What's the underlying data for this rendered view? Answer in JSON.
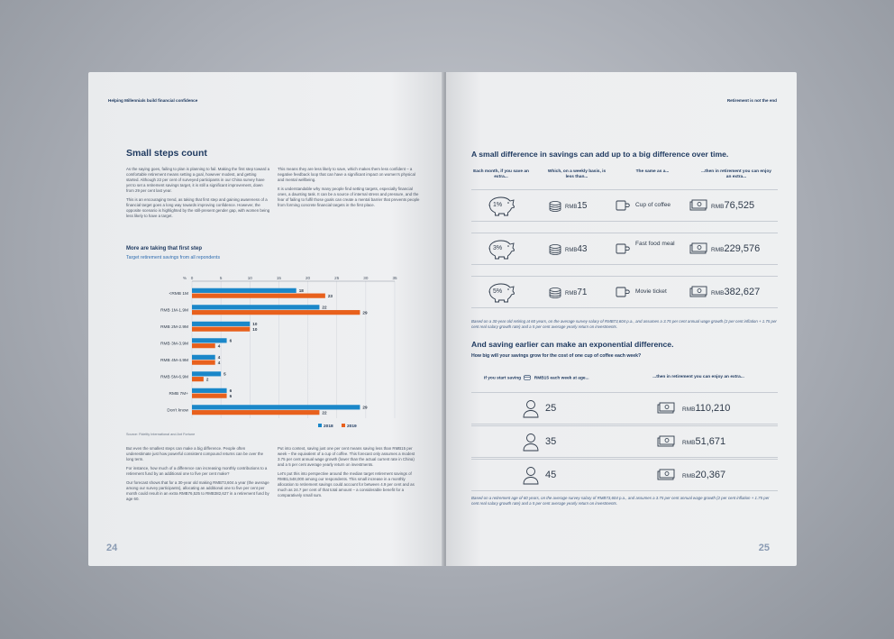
{
  "left": {
    "running_head": "Helping Millennials build financial confidence",
    "title": "Small steps count",
    "col1": [
      "As the saying goes, failing to plan is planning to fail. Making the first step toward a comfortable retirement means setting a goal, however modest, and getting started. Although 22 per cent of surveyed participants in our China survey have yet to set a retirement savings target, it is still a significant improvement, down from 29 per cent last year.",
      "This is an encouraging trend, as taking that first step and gaining awareness of a financial target goes a long way towards improving confidence. However, the opposite scenario is highlighted by the still-present gender gap, with women being less likely to have a target."
    ],
    "col2": [
      "This means they are less likely to save, which makes them less confident – a negative feedback loop that can have a significant impact on women's physical and mental wellbeing.",
      "It is understandable why many people find setting targets, especially financial ones, a daunting task. It can be a source of internal stress and pressure, and the fear of failing to fulfil those goals can create a mental barrier that prevents people from forming concrete financial targets in the first place."
    ],
    "chart_title": "More are taking that first step",
    "chart_subtitle": "Target retirement savings from all repondents",
    "source": "Source: Fidelity International and Ant Fortune",
    "col3": [
      "But even the smallest steps can make a big difference. People often underestimate just how powerful consistent compound returns can be over the long term.",
      "For instance, how much of a difference can increasing monthly contributions to a retirement fund by an additional one to five per cent make?",
      "Our forecast shows that for a 30-year old making RMB73,604 a year (the average among our survey participants), allocating an additional one to five per cent per month could result in an extra RMB76,525 to RMB382,627 in a retirement fund by age 60."
    ],
    "col4": [
      "Put into context, saving just one per cent means saving less than RMB15 per week – the equivalent of a cup of coffee. This forecast only assumes a modest 3.75 per cent annual wage growth (lower than the actual current rate in China) and a 5 per cent average yearly return on investments.",
      "Let's put this into perspective around the median target retirement savings of RMB1,548,000 among our respondents. This small increase in a monthly allocation to retirement savings could account for between 4.9 per cent and as much as 24.7 per cent of that total amount – a considerable benefit for a comparatively small sum."
    ],
    "folio": "24"
  },
  "chart_data": {
    "type": "bar",
    "orientation": "horizontal",
    "categories": [
      "<RMB 1M",
      "RMB 1M-1.9M",
      "RMB 2M-2.9M",
      "RMB 3M-3.9M",
      "RMB 4M-4.9M",
      "RMB 5M-6.9M",
      "RMB 7M+",
      "Don't know"
    ],
    "series": [
      {
        "name": "2018",
        "values": [
          18,
          22,
          10,
          6,
          4,
          5,
          6,
          29
        ],
        "color": "#1a87c9"
      },
      {
        "name": "2019",
        "values": [
          23,
          29,
          10,
          4,
          4,
          2,
          6,
          22
        ],
        "color": "#e8601c"
      }
    ],
    "axis_unit": "%",
    "ticks": [
      0,
      5,
      10,
      15,
      20,
      25,
      30,
      35
    ],
    "xlim": [
      0,
      35
    ],
    "title": "More are taking that first step",
    "subtitle": "Target retirement savings from all repondents",
    "legend": "bottom"
  },
  "right": {
    "running_head": "Retirement is not the end",
    "title": "A small difference in savings can add up to a big difference over time.",
    "headers": [
      "Each month, if you save an extra...",
      "Which, on a weekly basis, is less than...",
      "The same as a...",
      "...then in retirement you can enjoy an extra..."
    ],
    "rows": [
      {
        "pct": "1%",
        "weekly_prefix": "RMB",
        "weekly": "15",
        "item": "Cup of coffee",
        "item_icon": "coffee-cup-icon",
        "extra_prefix": "RMB",
        "extra": "76,525"
      },
      {
        "pct": "3%",
        "weekly_prefix": "RMB",
        "weekly": "43",
        "item": "Fast food meal",
        "item_icon": "fast-food-icon",
        "extra_prefix": "RMB",
        "extra": "229,576"
      },
      {
        "pct": "5%",
        "weekly_prefix": "RMB",
        "weekly": "71",
        "item": "Movie ticket",
        "item_icon": "film-reel-icon",
        "extra_prefix": "RMB",
        "extra": "382,627"
      }
    ],
    "note1": "Based on a 30-year old retiring at 60 years, on the average survey salary of RMB73,604 p.a., and assumes a 3.75 per cent annual wage growth (2 per cent inflation + 1.75 per cent real salary growth rate) and a 5 per cent average yearly return on investments.",
    "title2": "And saving earlier can make an exponential difference.",
    "subtitle2": "How big will your savings grow for the cost of one cup of coffee each week?",
    "age_head_left_a": "If you start saving",
    "age_head_left_b": "RMB15 each week at age...",
    "age_head_right": "...then in retirement you can enjoy an extra...",
    "ages": [
      {
        "age": "25",
        "prefix": "RMB",
        "amount": "110,210"
      },
      {
        "age": "35",
        "prefix": "RMB",
        "amount": "51,671"
      },
      {
        "age": "45",
        "prefix": "RMB",
        "amount": "20,367"
      }
    ],
    "note2": "Based on a retirement age of 60 years, on the average survey salary of RMB73,604 p.a., and assumes a 3.75 per cent annual wage growth (2 per cent inflation + 1.75 per cent real salary growth rate) and a 5 per cent average yearly return on investments.",
    "folio": "25"
  },
  "colors": {
    "navy": "#1f3a60",
    "blue": "#1a87c9",
    "orange": "#e8601c"
  }
}
